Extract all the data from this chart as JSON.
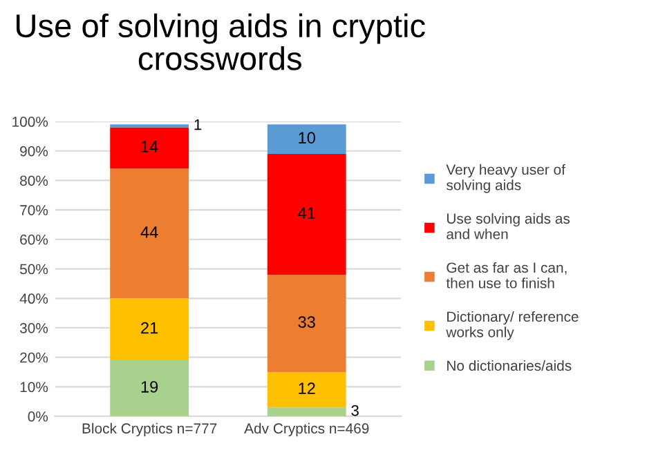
{
  "chart_data": {
    "type": "bar",
    "title": "Use of solving aids in cryptic\ncrosswords",
    "stacked": true,
    "data_labels": true,
    "grid": "y",
    "legend": "right",
    "categories": [
      "Block Cryptics n=777",
      "Adv Cryptics n=469"
    ],
    "ylim": [
      0,
      100
    ],
    "yticks": [
      {
        "value": 0,
        "label": "0%"
      },
      {
        "value": 10,
        "label": "10%"
      },
      {
        "value": 20,
        "label": "20%"
      },
      {
        "value": 30,
        "label": "30%"
      },
      {
        "value": 40,
        "label": "40%"
      },
      {
        "value": 50,
        "label": "50%"
      },
      {
        "value": 60,
        "label": "60%"
      },
      {
        "value": 70,
        "label": "70%"
      },
      {
        "value": 80,
        "label": "80%"
      },
      {
        "value": 90,
        "label": "90%"
      },
      {
        "value": 100,
        "label": "100%"
      }
    ],
    "series": [
      {
        "name": "No dictionaries/aids",
        "color": "#a9d18e",
        "values": [
          19,
          3
        ]
      },
      {
        "name": "Dictionary/ reference\nworks only",
        "color": "#ffc000",
        "values": [
          21,
          12
        ]
      },
      {
        "name": "Get as far as I can,\nthen use to finish",
        "color": "#ed7d31",
        "values": [
          44,
          33
        ]
      },
      {
        "name": "Use solving aids as\nand when",
        "color": "#ff0000",
        "values": [
          14,
          41
        ]
      },
      {
        "name": "Very heavy user of\nsolving aids",
        "color": "#5b9bd5",
        "values": [
          1,
          10
        ]
      }
    ]
  }
}
